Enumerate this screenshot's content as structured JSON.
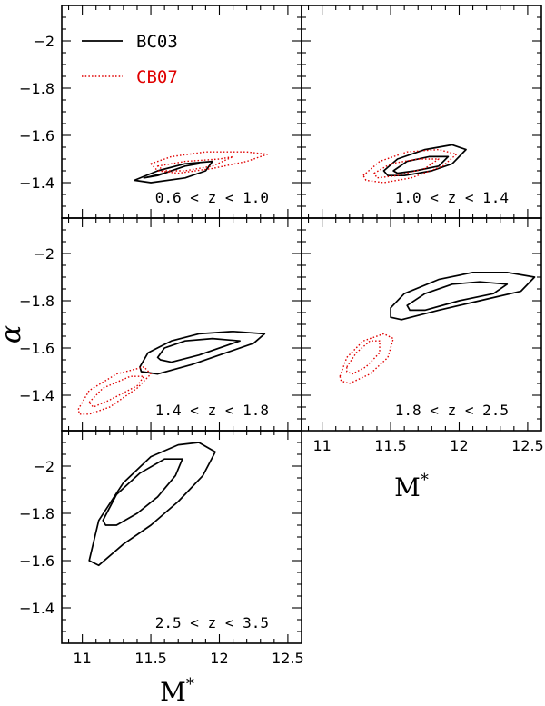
{
  "chart_data": {
    "type": "contour",
    "legend": {
      "placement": "top-left of first panel",
      "entries": [
        {
          "name": "BC03",
          "color": "#000000",
          "style": "solid"
        },
        {
          "name": "CB07",
          "color": "#e00000",
          "style": "dotted"
        }
      ]
    },
    "xlabel": "M*",
    "ylabel": "α",
    "xlim": [
      10.85,
      12.6
    ],
    "ylim": [
      -1.25,
      -2.15
    ],
    "y_inverted_display": true,
    "xticks": [
      "11",
      "11.5",
      "12",
      "12.5"
    ],
    "yticks": [
      "−2",
      "−1.8",
      "−1.6",
      "−1.4"
    ],
    "panels": [
      {
        "label": "0.6 < z < 1.0",
        "contours": [
          {
            "series": "BC03",
            "level": "inner",
            "points": [
              [
                11.45,
                -1.42
              ],
              [
                11.6,
                -1.44
              ],
              [
                11.75,
                -1.47
              ],
              [
                11.85,
                -1.48
              ],
              [
                11.75,
                -1.47
              ],
              [
                11.55,
                -1.43
              ]
            ]
          },
          {
            "series": "BC03",
            "level": "outer",
            "points": [
              [
                11.38,
                -1.41
              ],
              [
                11.55,
                -1.45
              ],
              [
                11.75,
                -1.48
              ],
              [
                11.95,
                -1.49
              ],
              [
                11.9,
                -1.45
              ],
              [
                11.75,
                -1.42
              ],
              [
                11.5,
                -1.4
              ]
            ]
          },
          {
            "series": "CB07",
            "level": "inner",
            "points": [
              [
                11.55,
                -1.47
              ],
              [
                11.75,
                -1.49
              ],
              [
                12.0,
                -1.5
              ],
              [
                12.1,
                -1.51
              ],
              [
                11.95,
                -1.47
              ],
              [
                11.75,
                -1.45
              ],
              [
                11.6,
                -1.45
              ]
            ]
          },
          {
            "series": "CB07",
            "level": "outer",
            "points": [
              [
                11.5,
                -1.48
              ],
              [
                11.65,
                -1.51
              ],
              [
                11.9,
                -1.53
              ],
              [
                12.2,
                -1.53
              ],
              [
                12.35,
                -1.52
              ],
              [
                12.2,
                -1.49
              ],
              [
                11.95,
                -1.46
              ],
              [
                11.7,
                -1.44
              ],
              [
                11.55,
                -1.45
              ]
            ]
          }
        ]
      },
      {
        "label": "1.0 < z < 1.4",
        "contours": [
          {
            "series": "BC03",
            "level": "inner",
            "points": [
              [
                11.52,
                -1.45
              ],
              [
                11.62,
                -1.49
              ],
              [
                11.78,
                -1.51
              ],
              [
                11.92,
                -1.51
              ],
              [
                11.85,
                -1.47
              ],
              [
                11.68,
                -1.45
              ],
              [
                11.55,
                -1.44
              ]
            ]
          },
          {
            "series": "BC03",
            "level": "outer",
            "points": [
              [
                11.45,
                -1.45
              ],
              [
                11.55,
                -1.5
              ],
              [
                11.75,
                -1.54
              ],
              [
                11.95,
                -1.56
              ],
              [
                12.05,
                -1.54
              ],
              [
                11.95,
                -1.48
              ],
              [
                11.8,
                -1.45
              ],
              [
                11.6,
                -1.43
              ],
              [
                11.48,
                -1.43
              ]
            ]
          },
          {
            "series": "CB07",
            "level": "inner",
            "points": [
              [
                11.38,
                -1.44
              ],
              [
                11.5,
                -1.48
              ],
              [
                11.7,
                -1.5
              ],
              [
                11.85,
                -1.5
              ],
              [
                11.75,
                -1.46
              ],
              [
                11.55,
                -1.43
              ],
              [
                11.4,
                -1.42
              ]
            ]
          },
          {
            "series": "CB07",
            "level": "outer",
            "points": [
              [
                11.3,
                -1.43
              ],
              [
                11.42,
                -1.49
              ],
              [
                11.62,
                -1.53
              ],
              [
                11.85,
                -1.54
              ],
              [
                11.98,
                -1.52
              ],
              [
                11.88,
                -1.47
              ],
              [
                11.65,
                -1.42
              ],
              [
                11.45,
                -1.4
              ],
              [
                11.32,
                -1.41
              ]
            ]
          }
        ]
      },
      {
        "label": "1.4 < z < 1.8",
        "contours": [
          {
            "series": "BC03",
            "level": "inner",
            "points": [
              [
                11.55,
                -1.56
              ],
              [
                11.6,
                -1.6
              ],
              [
                11.75,
                -1.63
              ],
              [
                11.95,
                -1.64
              ],
              [
                12.15,
                -1.63
              ],
              [
                12.05,
                -1.61
              ],
              [
                11.85,
                -1.57
              ],
              [
                11.65,
                -1.54
              ],
              [
                11.57,
                -1.55
              ]
            ]
          },
          {
            "series": "BC03",
            "level": "outer",
            "points": [
              [
                11.42,
                -1.52
              ],
              [
                11.48,
                -1.58
              ],
              [
                11.65,
                -1.63
              ],
              [
                11.85,
                -1.66
              ],
              [
                12.1,
                -1.67
              ],
              [
                12.33,
                -1.66
              ],
              [
                12.25,
                -1.62
              ],
              [
                12.05,
                -1.58
              ],
              [
                11.8,
                -1.53
              ],
              [
                11.55,
                -1.49
              ],
              [
                11.43,
                -1.5
              ]
            ]
          },
          {
            "series": "CB07",
            "level": "inner",
            "points": [
              [
                11.05,
                -1.37
              ],
              [
                11.15,
                -1.43
              ],
              [
                11.35,
                -1.48
              ],
              [
                11.45,
                -1.48
              ],
              [
                11.4,
                -1.44
              ],
              [
                11.2,
                -1.38
              ],
              [
                11.08,
                -1.35
              ]
            ]
          },
          {
            "series": "CB07",
            "level": "outer",
            "points": [
              [
                10.97,
                -1.34
              ],
              [
                11.05,
                -1.42
              ],
              [
                11.25,
                -1.49
              ],
              [
                11.45,
                -1.52
              ],
              [
                11.5,
                -1.49
              ],
              [
                11.4,
                -1.43
              ],
              [
                11.2,
                -1.35
              ],
              [
                11.05,
                -1.32
              ],
              [
                10.98,
                -1.32
              ]
            ]
          }
        ]
      },
      {
        "label": "1.8 < z < 2.5",
        "contours": [
          {
            "series": "BC03",
            "level": "inner",
            "points": [
              [
                11.62,
                -1.78
              ],
              [
                11.75,
                -1.83
              ],
              [
                11.95,
                -1.87
              ],
              [
                12.15,
                -1.88
              ],
              [
                12.35,
                -1.87
              ],
              [
                12.25,
                -1.83
              ],
              [
                12.0,
                -1.8
              ],
              [
                11.75,
                -1.76
              ],
              [
                11.64,
                -1.76
              ]
            ]
          },
          {
            "series": "BC03",
            "level": "outer",
            "points": [
              [
                11.5,
                -1.77
              ],
              [
                11.6,
                -1.83
              ],
              [
                11.85,
                -1.89
              ],
              [
                12.1,
                -1.92
              ],
              [
                12.35,
                -1.92
              ],
              [
                12.55,
                -1.9
              ],
              [
                12.45,
                -1.84
              ],
              [
                12.15,
                -1.8
              ],
              [
                11.85,
                -1.76
              ],
              [
                11.58,
                -1.72
              ],
              [
                11.5,
                -1.73
              ]
            ]
          },
          {
            "series": "CB07",
            "level": "inner",
            "points": [
              [
                11.18,
                -1.52
              ],
              [
                11.25,
                -1.58
              ],
              [
                11.35,
                -1.63
              ],
              [
                11.42,
                -1.63
              ],
              [
                11.42,
                -1.58
              ],
              [
                11.32,
                -1.52
              ],
              [
                11.22,
                -1.49
              ],
              [
                11.18,
                -1.5
              ]
            ]
          },
          {
            "series": "CB07",
            "level": "outer",
            "points": [
              [
                11.13,
                -1.48
              ],
              [
                11.18,
                -1.56
              ],
              [
                11.3,
                -1.63
              ],
              [
                11.45,
                -1.66
              ],
              [
                11.52,
                -1.64
              ],
              [
                11.48,
                -1.56
              ],
              [
                11.35,
                -1.49
              ],
              [
                11.2,
                -1.45
              ],
              [
                11.14,
                -1.46
              ]
            ]
          }
        ]
      },
      {
        "label": "2.5 < z < 3.5",
        "contours": [
          {
            "series": "BC03",
            "level": "inner",
            "points": [
              [
                11.15,
                -1.77
              ],
              [
                11.25,
                -1.88
              ],
              [
                11.42,
                -1.97
              ],
              [
                11.6,
                -2.03
              ],
              [
                11.73,
                -2.03
              ],
              [
                11.68,
                -1.96
              ],
              [
                11.55,
                -1.87
              ],
              [
                11.4,
                -1.8
              ],
              [
                11.25,
                -1.75
              ],
              [
                11.17,
                -1.75
              ]
            ]
          },
          {
            "series": "BC03",
            "level": "outer",
            "points": [
              [
                11.05,
                -1.6
              ],
              [
                11.12,
                -1.77
              ],
              [
                11.3,
                -1.93
              ],
              [
                11.5,
                -2.04
              ],
              [
                11.7,
                -2.09
              ],
              [
                11.85,
                -2.1
              ],
              [
                11.97,
                -2.06
              ],
              [
                11.88,
                -1.96
              ],
              [
                11.7,
                -1.85
              ],
              [
                11.5,
                -1.75
              ],
              [
                11.3,
                -1.67
              ],
              [
                11.12,
                -1.58
              ]
            ]
          }
        ]
      }
    ]
  }
}
